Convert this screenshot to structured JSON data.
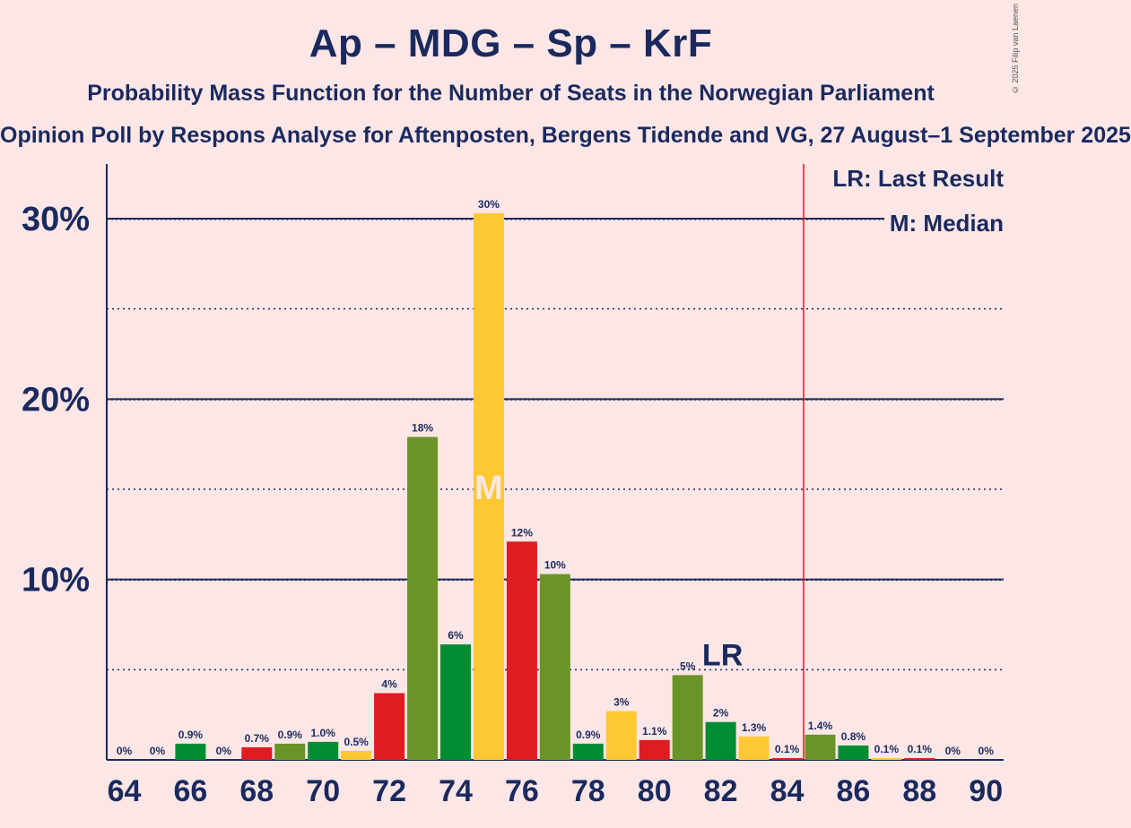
{
  "title": "Ap – MDG – Sp – KrF",
  "subtitle": "Probability Mass Function for the Number of Seats in the Norwegian Parliament",
  "source": "Opinion Poll by Respons Analyse for Aftenposten, Bergens Tidende and VG, 27 August–1 September 2025",
  "copyright": "© 2025 Filip van Laenen",
  "legend": {
    "last_result": "LR: Last Result",
    "median": "M: Median"
  },
  "colors": {
    "background": "#fde6e6",
    "text": "#1a2a5e",
    "ap_red": "#e01b22",
    "mdg_green": "#6a9428",
    "sp_green": "#008d32",
    "krf_yellow": "#fec832",
    "majority_line": "#e01b22"
  },
  "chart_data": {
    "type": "bar",
    "xlim": [
      64,
      90
    ],
    "ylim": [
      0,
      33
    ],
    "yticks": [
      10,
      20,
      30
    ],
    "ytick_labels": [
      "10%",
      "20%",
      "30%"
    ],
    "xtick_labels": [
      "64",
      "66",
      "68",
      "70",
      "72",
      "74",
      "76",
      "78",
      "80",
      "82",
      "84",
      "86",
      "88",
      "90"
    ],
    "majority": 85,
    "median": 75,
    "last_result": 82,
    "median_marker": "M",
    "last_result_marker": "LR",
    "bars": [
      {
        "seats": 64,
        "value": 0,
        "label": "0%",
        "color": "krf"
      },
      {
        "seats": 65,
        "value": 0,
        "label": "0%",
        "color": "ap"
      },
      {
        "seats": 66,
        "value": 0.9,
        "label": "0.9%",
        "color": "sp"
      },
      {
        "seats": 67,
        "value": 0,
        "label": "0%",
        "color": "krf"
      },
      {
        "seats": 68,
        "value": 0.7,
        "label": "0.7%",
        "color": "ap"
      },
      {
        "seats": 69,
        "value": 0.9,
        "label": "0.9%",
        "color": "mdg"
      },
      {
        "seats": 70,
        "value": 1.0,
        "label": "1.0%",
        "color": "sp"
      },
      {
        "seats": 71,
        "value": 0.5,
        "label": "0.5%",
        "color": "krf"
      },
      {
        "seats": 72,
        "value": 3.7,
        "label": "4%",
        "color": "ap"
      },
      {
        "seats": 73,
        "value": 17.9,
        "label": "18%",
        "color": "mdg"
      },
      {
        "seats": 74,
        "value": 6.4,
        "label": "6%",
        "color": "sp"
      },
      {
        "seats": 75,
        "value": 30.3,
        "label": "30%",
        "color": "krf"
      },
      {
        "seats": 76,
        "value": 12.1,
        "label": "12%",
        "color": "ap"
      },
      {
        "seats": 77,
        "value": 10.3,
        "label": "10%",
        "color": "mdg"
      },
      {
        "seats": 78,
        "value": 0.9,
        "label": "0.9%",
        "color": "sp"
      },
      {
        "seats": 79,
        "value": 2.7,
        "label": "3%",
        "color": "krf"
      },
      {
        "seats": 80,
        "value": 1.1,
        "label": "1.1%",
        "color": "ap"
      },
      {
        "seats": 81,
        "value": 4.7,
        "label": "5%",
        "color": "mdg"
      },
      {
        "seats": 82,
        "value": 2.1,
        "label": "2%",
        "color": "sp"
      },
      {
        "seats": 83,
        "value": 1.3,
        "label": "1.3%",
        "color": "krf"
      },
      {
        "seats": 84,
        "value": 0.1,
        "label": "0.1%",
        "color": "ap"
      },
      {
        "seats": 85,
        "value": 1.4,
        "label": "1.4%",
        "color": "mdg"
      },
      {
        "seats": 86,
        "value": 0.8,
        "label": "0.8%",
        "color": "sp"
      },
      {
        "seats": 87,
        "value": 0.1,
        "label": "0.1%",
        "color": "krf"
      },
      {
        "seats": 88,
        "value": 0.1,
        "label": "0.1%",
        "color": "ap"
      },
      {
        "seats": 89,
        "value": 0,
        "label": "0%",
        "color": "mdg"
      },
      {
        "seats": 90,
        "value": 0,
        "label": "0%",
        "color": "sp"
      }
    ]
  }
}
